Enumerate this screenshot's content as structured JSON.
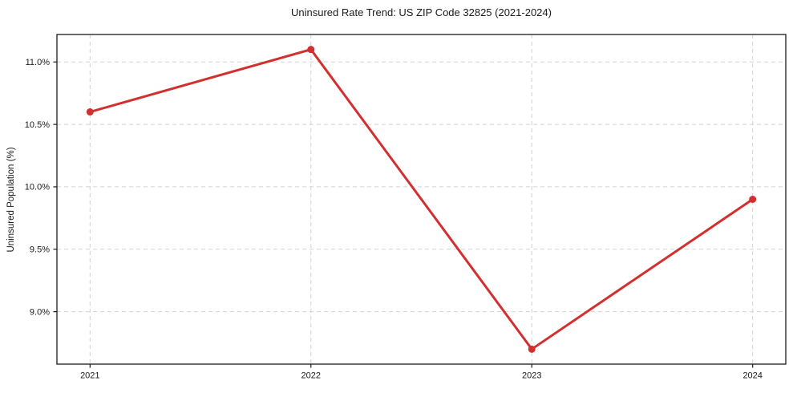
{
  "chart_data": {
    "type": "line",
    "title": "Uninsured Rate Trend: US ZIP Code 32825 (2021-2024)",
    "xlabel": "",
    "ylabel": "Uninsured Population (%)",
    "x": [
      2021,
      2022,
      2023,
      2024
    ],
    "x_tick_labels": [
      "2021",
      "2022",
      "2023",
      "2024"
    ],
    "series": [
      {
        "name": "uninsured-rate",
        "values": [
          10.6,
          11.1,
          8.7,
          9.9
        ]
      }
    ],
    "y_ticks": [
      9.0,
      9.5,
      10.0,
      10.5,
      11.0
    ],
    "y_tick_labels": [
      "9.0%",
      "9.5%",
      "10.0%",
      "10.5%",
      "11.0%"
    ],
    "xlim": [
      2020.85,
      2024.15
    ],
    "ylim": [
      8.58,
      11.22
    ],
    "grid": "on",
    "grid_style": "dashed",
    "legend": "none",
    "colors": {
      "line": "#d32f2f",
      "marker": "#d32f2f",
      "grid": "#d2d2d2",
      "spine": "#1a1a1a",
      "text": "#1a1a1a",
      "background": "#ffffff"
    }
  }
}
